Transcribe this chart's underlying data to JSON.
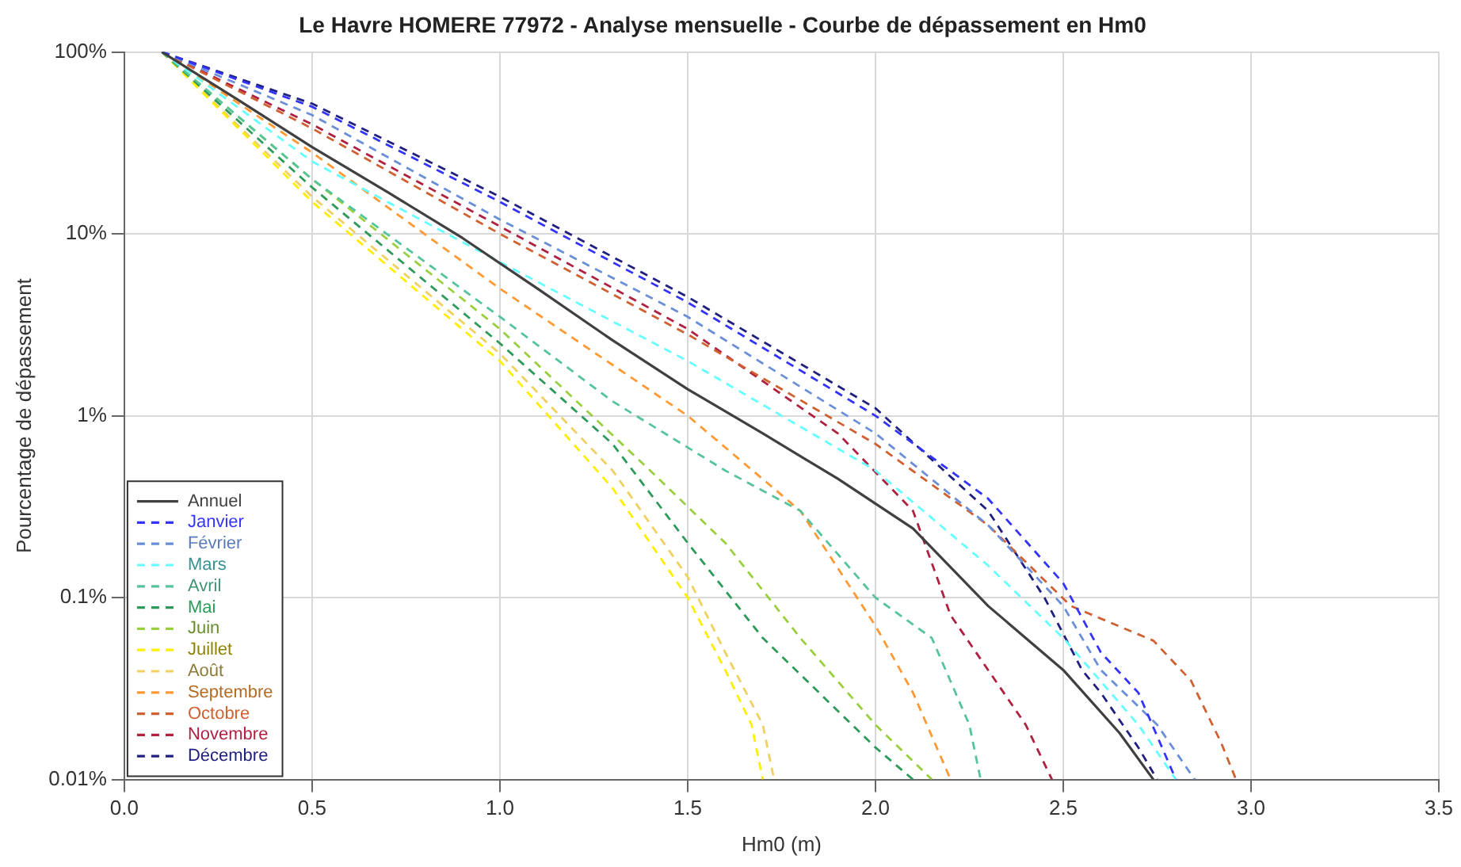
{
  "chart_data": {
    "type": "line",
    "title": "Le Havre HOMERE 77972 - Analyse mensuelle - Courbe de dépassement en Hm0",
    "xlabel": "Hm0 (m)",
    "ylabel": "Pourcentage de dépassement",
    "log": "y",
    "grid": true,
    "legend": "bottom left",
    "marker": "none",
    "xlim": [
      0,
      3.5
    ],
    "xticks": [
      {
        "value": 0,
        "label": "0.0"
      },
      {
        "value": 0.5,
        "label": "0.5"
      },
      {
        "value": 1,
        "label": "1.0"
      },
      {
        "value": 1.5,
        "label": "1.5"
      },
      {
        "value": 2,
        "label": "2.0"
      },
      {
        "value": 2.5,
        "label": "2.5"
      },
      {
        "value": 3,
        "label": "3.0"
      },
      {
        "value": 3.5,
        "label": "3.5"
      }
    ],
    "ylim": [
      0.01,
      100
    ],
    "yticks": [
      {
        "value": 0.01,
        "label": "0.01%"
      },
      {
        "value": 0.1,
        "label": "0.1%"
      },
      {
        "value": 1,
        "label": "1%"
      },
      {
        "value": 10,
        "label": "10%"
      },
      {
        "value": 100,
        "label": "100%"
      }
    ],
    "series": [
      {
        "name": "Annuel",
        "color": "#404040",
        "line_style": "solid",
        "x": [
          0.1,
          0.3,
          0.5,
          0.7,
          0.9,
          1.1,
          1.3,
          1.5,
          1.7,
          1.9,
          2.1,
          2.3,
          2.5,
          2.65,
          2.74
        ],
        "values": [
          100,
          55,
          30,
          17,
          9.5,
          5,
          2.6,
          1.4,
          0.8,
          0.45,
          0.24,
          0.09,
          0.04,
          0.018,
          0.01
        ]
      },
      {
        "name": "Janvier",
        "color": "#3333ff",
        "line_style": "dashed",
        "x": [
          0.1,
          0.5,
          1.0,
          1.5,
          2.0,
          2.3,
          2.5,
          2.6,
          2.7,
          2.8
        ],
        "values": [
          100,
          50,
          15,
          4.2,
          1.0,
          0.35,
          0.12,
          0.05,
          0.03,
          0.01
        ]
      },
      {
        "name": "Février",
        "color": "#6a8fd8",
        "line_style": "dashed",
        "x": [
          0.1,
          0.5,
          1.0,
          1.5,
          2.0,
          2.3,
          2.5,
          2.6,
          2.75,
          2.85
        ],
        "values": [
          100,
          45,
          12,
          3.5,
          0.8,
          0.25,
          0.09,
          0.04,
          0.02,
          0.01
        ]
      },
      {
        "name": "Mars",
        "color": "#66ffff",
        "line_style": "dashed",
        "x": [
          0.1,
          0.5,
          1.0,
          1.5,
          2.0,
          2.3,
          2.5,
          2.7,
          2.8
        ],
        "values": [
          100,
          25,
          7,
          2,
          0.5,
          0.15,
          0.06,
          0.02,
          0.01
        ]
      },
      {
        "name": "Avril",
        "color": "#55c49a",
        "line_style": "dashed",
        "x": [
          0.1,
          0.5,
          1.0,
          1.3,
          1.6,
          1.8,
          2.0,
          2.15,
          2.25,
          2.28
        ],
        "values": [
          100,
          20,
          3.5,
          1.2,
          0.5,
          0.3,
          0.1,
          0.06,
          0.02,
          0.01
        ]
      },
      {
        "name": "Mai",
        "color": "#2e9a5a",
        "line_style": "dashed",
        "x": [
          0.1,
          0.5,
          1.0,
          1.3,
          1.5,
          1.7,
          1.85,
          2.0,
          2.1
        ],
        "values": [
          100,
          18,
          2.5,
          0.7,
          0.2,
          0.06,
          0.03,
          0.015,
          0.01
        ]
      },
      {
        "name": "Juin",
        "color": "#9ad040",
        "line_style": "dashed",
        "x": [
          0.1,
          0.5,
          1.0,
          1.4,
          1.6,
          1.8,
          2.0,
          2.15
        ],
        "values": [
          100,
          20,
          3,
          0.5,
          0.2,
          0.06,
          0.02,
          0.01
        ]
      },
      {
        "name": "Juillet",
        "color": "#ffee00",
        "line_style": "dashed",
        "x": [
          0.1,
          0.5,
          1.0,
          1.3,
          1.5,
          1.6,
          1.67,
          1.7
        ],
        "values": [
          100,
          15,
          2,
          0.4,
          0.1,
          0.04,
          0.02,
          0.01
        ]
      },
      {
        "name": "Août",
        "color": "#f0d060",
        "line_style": "dashed",
        "x": [
          0.1,
          0.5,
          1.0,
          1.3,
          1.5,
          1.6,
          1.7,
          1.73
        ],
        "values": [
          100,
          16,
          2.2,
          0.5,
          0.13,
          0.05,
          0.02,
          0.01
        ]
      },
      {
        "name": "Septembre",
        "color": "#ff9933",
        "line_style": "dashed",
        "x": [
          0.1,
          0.5,
          1.0,
          1.5,
          1.8,
          2.0,
          2.1,
          2.2
        ],
        "values": [
          100,
          28,
          5,
          1,
          0.3,
          0.07,
          0.03,
          0.01
        ]
      },
      {
        "name": "Octobre",
        "color": "#d06030",
        "line_style": "dashed",
        "x": [
          0.1,
          0.5,
          1.0,
          1.5,
          2.0,
          2.3,
          2.52,
          2.74,
          2.84,
          2.92,
          2.96
        ],
        "values": [
          100,
          38,
          10,
          2.8,
          0.7,
          0.25,
          0.09,
          0.058,
          0.035,
          0.016,
          0.01
        ]
      },
      {
        "name": "Novembre",
        "color": "#b02040",
        "line_style": "dashed",
        "x": [
          0.1,
          0.5,
          1.0,
          1.5,
          1.9,
          2.1,
          2.2,
          2.3,
          2.4,
          2.47
        ],
        "values": [
          100,
          40,
          11,
          3,
          0.8,
          0.3,
          0.08,
          0.04,
          0.02,
          0.01
        ]
      },
      {
        "name": "Décembre",
        "color": "#202080",
        "line_style": "dashed",
        "x": [
          0.1,
          0.5,
          1.0,
          1.5,
          2.0,
          2.3,
          2.45,
          2.55,
          2.6,
          2.7,
          2.75
        ],
        "values": [
          100,
          52,
          16,
          4.5,
          1.1,
          0.3,
          0.1,
          0.04,
          0.03,
          0.015,
          0.01
        ]
      }
    ]
  }
}
